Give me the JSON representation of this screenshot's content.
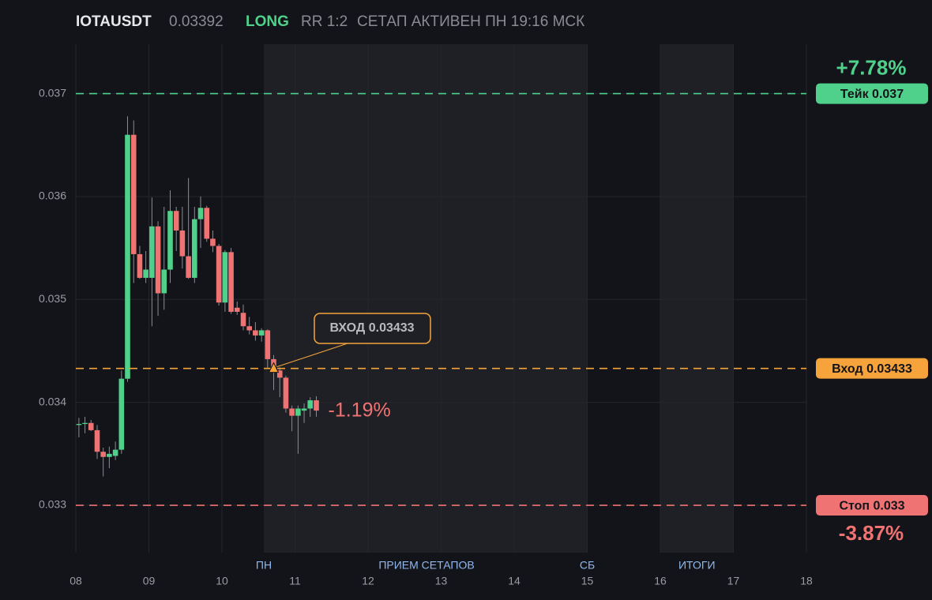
{
  "chart_data": {
    "type": "candlestick",
    "title": "IOTAUSDT",
    "price": 0.03392,
    "side": "LONG",
    "rr": "RR 1:2",
    "status": "СЕТАП АКТИВЕН ПН 19:16 МСК",
    "x": [
      8.042,
      8.125,
      8.208,
      8.292,
      8.375,
      8.458,
      8.542,
      8.625,
      8.708,
      8.792,
      8.875,
      8.958,
      9.042,
      9.125,
      9.208,
      9.292,
      9.375,
      9.458,
      9.542,
      9.625,
      9.708,
      9.792,
      9.875,
      9.958,
      10.042,
      10.125,
      10.208,
      10.292,
      10.375,
      10.458,
      10.542,
      10.625,
      10.708,
      10.792,
      10.875,
      10.958,
      11.042,
      11.125,
      11.208,
      11.292
    ],
    "open": [
      0.03378,
      0.03379,
      0.0338,
      0.03373,
      0.03352,
      0.03347,
      0.03348,
      0.03354,
      0.03423,
      0.0366,
      0.03544,
      0.03521,
      0.03521,
      0.03571,
      0.03506,
      0.03529,
      0.03586,
      0.03567,
      0.03542,
      0.03521,
      0.03578,
      0.03589,
      0.03559,
      0.03552,
      0.03497,
      0.03546,
      0.03492,
      0.03487,
      0.03474,
      0.0347,
      0.03465,
      0.0347,
      0.03442,
      0.03431,
      0.03424,
      0.03394,
      0.03387,
      0.03392,
      0.03394,
      0.03402
    ],
    "high": [
      0.03385,
      0.03386,
      0.03383,
      0.03378,
      0.03356,
      0.03357,
      0.03362,
      0.03431,
      0.03678,
      0.03674,
      0.03552,
      0.03547,
      0.03599,
      0.03576,
      0.0359,
      0.03606,
      0.0359,
      0.0359,
      0.03618,
      0.0359,
      0.036,
      0.03591,
      0.03567,
      0.03554,
      0.03548,
      0.0355,
      0.03498,
      0.03495,
      0.03483,
      0.03478,
      0.03472,
      0.03471,
      0.03446,
      0.03434,
      0.03426,
      0.03397,
      0.03397,
      0.03399,
      0.03405,
      0.03406
    ],
    "low": [
      0.03366,
      0.0337,
      0.03372,
      0.03345,
      0.03328,
      0.03336,
      0.03344,
      0.0335,
      0.0342,
      0.03516,
      0.0352,
      0.03516,
      0.03474,
      0.03484,
      0.0349,
      0.03516,
      0.03547,
      0.0353,
      0.0352,
      0.03516,
      0.0355,
      0.03556,
      0.03546,
      0.03494,
      0.03488,
      0.03486,
      0.03485,
      0.0347,
      0.03466,
      0.0346,
      0.03459,
      0.03433,
      0.03412,
      0.03405,
      0.0339,
      0.03372,
      0.0335,
      0.0338,
      0.03386,
      0.03386
    ],
    "close": [
      0.03379,
      0.0338,
      0.03373,
      0.03352,
      0.03347,
      0.0335,
      0.03354,
      0.03423,
      0.0366,
      0.03544,
      0.03521,
      0.03529,
      0.03571,
      0.03506,
      0.03529,
      0.03586,
      0.03567,
      0.03542,
      0.03521,
      0.03578,
      0.03589,
      0.03559,
      0.03552,
      0.03497,
      0.03546,
      0.03488,
      0.03488,
      0.03474,
      0.0347,
      0.03465,
      0.0347,
      0.03442,
      0.03431,
      0.03424,
      0.03394,
      0.03387,
      0.03394,
      0.03394,
      0.03402,
      0.03392
    ],
    "up_color": "#4fd18b",
    "down_color": "#f07373",
    "xlim": [
      8,
      18
    ],
    "xticks": [
      {
        "value": 8,
        "label": "08"
      },
      {
        "value": 9,
        "label": "09"
      },
      10,
      11,
      12,
      13,
      14,
      15,
      16,
      17,
      18
    ],
    "ylim": [
      0.03254,
      0.03748
    ],
    "yticks": [
      0.033,
      0.034,
      0.035,
      0.036,
      0.037
    ],
    "grid": true,
    "zones": [
      [
        10.573,
        15
      ],
      [
        16,
        17
      ]
    ],
    "sessions": [
      {
        "label": "ПН",
        "x": 10.573
      },
      {
        "label": "ПРИЕМ СЕТАПОВ",
        "x": 12.8
      },
      {
        "label": "СБ",
        "x": 15
      },
      {
        "label": "ИТОГИ",
        "x": 16.5
      }
    ],
    "levels": [
      {
        "name": "Тейк 0.037",
        "value": 0.037,
        "color": "#4fd18b",
        "change": "+7.78%"
      },
      {
        "name": "Вход 0.03433",
        "value": 0.03433,
        "color": "#f5a33a"
      },
      {
        "name": "Стоп 0.033",
        "value": 0.033,
        "color": "#f07373",
        "change": "-3.87%"
      }
    ],
    "entry_marker": {
      "label": "ВХОД 0.03433",
      "x": 10.708,
      "y": 0.03433
    },
    "last_change": "-1.19%"
  }
}
